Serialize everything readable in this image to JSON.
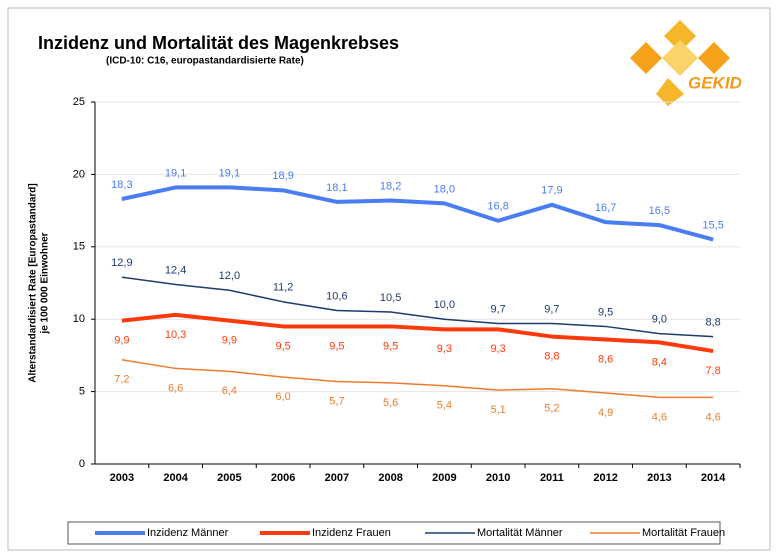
{
  "chart_data": {
    "type": "line",
    "title": "Inzidenz und Mortalität des Magenkrebses",
    "subtitle": "(ICD-10: C16, europastandardisierte Rate)",
    "logo": "GEKID",
    "y_label": [
      "Alterstandardisiert Rate [Europastandard]",
      "je 100 000 Einwohner"
    ],
    "categories": [
      "2003",
      "2004",
      "2005",
      "2006",
      "2007",
      "2008",
      "2009",
      "2010",
      "2011",
      "2012",
      "2013",
      "2014"
    ],
    "series": [
      {
        "name": "Inzidenz Männer",
        "color": "#4a7cf2",
        "values": [
          18.3,
          19.1,
          19.1,
          18.9,
          18.1,
          18.2,
          18.0,
          16.8,
          17.9,
          16.7,
          16.5,
          15.5
        ],
        "value_labels": [
          "18,3",
          "19,1",
          "19,1",
          "18,9",
          "18,1",
          "18,2",
          "18,0",
          "16,8",
          "17,9",
          "16,7",
          "16,5",
          "15,5"
        ]
      },
      {
        "name": "Inzidenz Frauen",
        "color": "#ff3a0a",
        "values": [
          9.9,
          10.3,
          9.9,
          9.5,
          9.5,
          9.5,
          9.3,
          9.3,
          8.8,
          8.6,
          8.4,
          7.8
        ],
        "value_labels": [
          "9,9",
          "10,3",
          "9,9",
          "9,5",
          "9,5",
          "9,5",
          "9,3",
          "9,3",
          "8,8",
          "8,6",
          "8,4",
          "7,8"
        ]
      },
      {
        "name": "Mortalität Männer",
        "color": "#1f3b6f",
        "values": [
          12.9,
          12.4,
          12.0,
          11.2,
          10.6,
          10.5,
          10.0,
          9.7,
          9.7,
          9.5,
          9.0,
          8.8
        ],
        "value_labels": [
          "12,9",
          "12,4",
          "12,0",
          "11,2",
          "10,6",
          "10,5",
          "10,0",
          "9,7",
          "9,7",
          "9,5",
          "9,0",
          "8,8"
        ]
      },
      {
        "name": "Mortalität Frauen",
        "color": "#ee7d2b",
        "values": [
          7.2,
          6.6,
          6.4,
          6.0,
          5.7,
          5.6,
          5.4,
          5.1,
          5.2,
          4.9,
          4.6,
          4.6
        ],
        "value_labels": [
          "7,2",
          "6,6",
          "6,4",
          "6,0",
          "5,7",
          "5,6",
          "5,4",
          "5,1",
          "5,2",
          "4,9",
          "4,6",
          "4,6"
        ]
      }
    ],
    "ylim": [
      0,
      25
    ],
    "yticks": [
      0,
      5,
      10,
      15,
      20,
      25
    ],
    "grid": true
  }
}
